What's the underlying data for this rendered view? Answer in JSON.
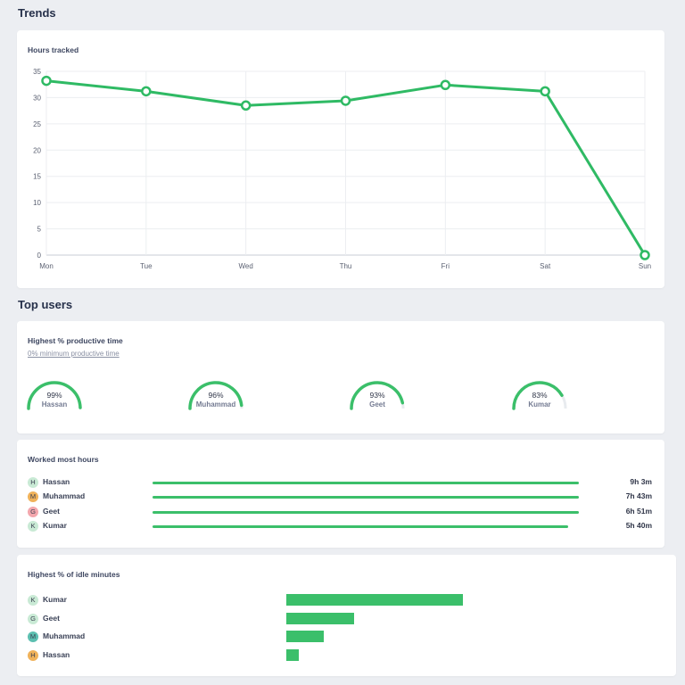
{
  "trends": {
    "title": "Trends",
    "hours_card_title": "Hours tracked"
  },
  "chart_data": {
    "type": "line",
    "title": "Hours tracked",
    "categories": [
      "Mon",
      "Tue",
      "Wed",
      "Thu",
      "Fri",
      "Sat",
      "Sun"
    ],
    "series": [
      {
        "values": [
          33.2,
          31.2,
          28.5,
          29.4,
          32.4,
          31.2,
          0
        ],
        "color": "#2fba64"
      }
    ],
    "yticks": [
      "0",
      "5",
      "10",
      "15",
      "20",
      "25",
      "30",
      "35"
    ],
    "ylim": [
      0,
      35
    ],
    "grid": true
  },
  "top_users": {
    "title": "Top users",
    "productive": {
      "title": "Highest % productive time",
      "subtitle": "0% minimum productive time",
      "users": [
        {
          "name": "Hassan",
          "pct_label": "99%",
          "value": 0.99
        },
        {
          "name": "Muhammad",
          "pct_label": "96%",
          "value": 0.96
        },
        {
          "name": "Geet",
          "pct_label": "93%",
          "value": 0.93
        },
        {
          "name": "Kumar",
          "pct_label": "83%",
          "value": 0.83
        }
      ]
    },
    "worked": {
      "title": "Worked most hours",
      "users": [
        {
          "initial": "H",
          "name": "Hassan",
          "time": "9h 3m",
          "fraction": 1.0,
          "avatar_color": "#c9ead5"
        },
        {
          "initial": "M",
          "name": "Muhammad",
          "time": "7h 43m",
          "fraction": 1.0,
          "avatar_color": "#f0b25a"
        },
        {
          "initial": "G",
          "name": "Geet",
          "time": "6h 51m",
          "fraction": 1.0,
          "avatar_color": "#f3a7ad"
        },
        {
          "initial": "K",
          "name": "Kumar",
          "time": "5h 40m",
          "fraction": 0.975,
          "avatar_color": "#c9ead5"
        }
      ]
    },
    "idle": {
      "title": "Highest % of idle minutes",
      "users": [
        {
          "initial": "K",
          "name": "Kumar",
          "fraction": 1.0,
          "avatar_color": "#c9ead5"
        },
        {
          "initial": "G",
          "name": "Geet",
          "fraction": 0.385,
          "avatar_color": "#c9ead5"
        },
        {
          "initial": "M",
          "name": "Muhammad",
          "fraction": 0.21,
          "avatar_color": "#5cbfb0"
        },
        {
          "initial": "H",
          "name": "Hassan",
          "fraction": 0.07,
          "avatar_color": "#f0b25a"
        }
      ]
    }
  },
  "colors": {
    "accent": "#3bbf6a",
    "background": "#eceef2",
    "card": "#ffffff"
  }
}
